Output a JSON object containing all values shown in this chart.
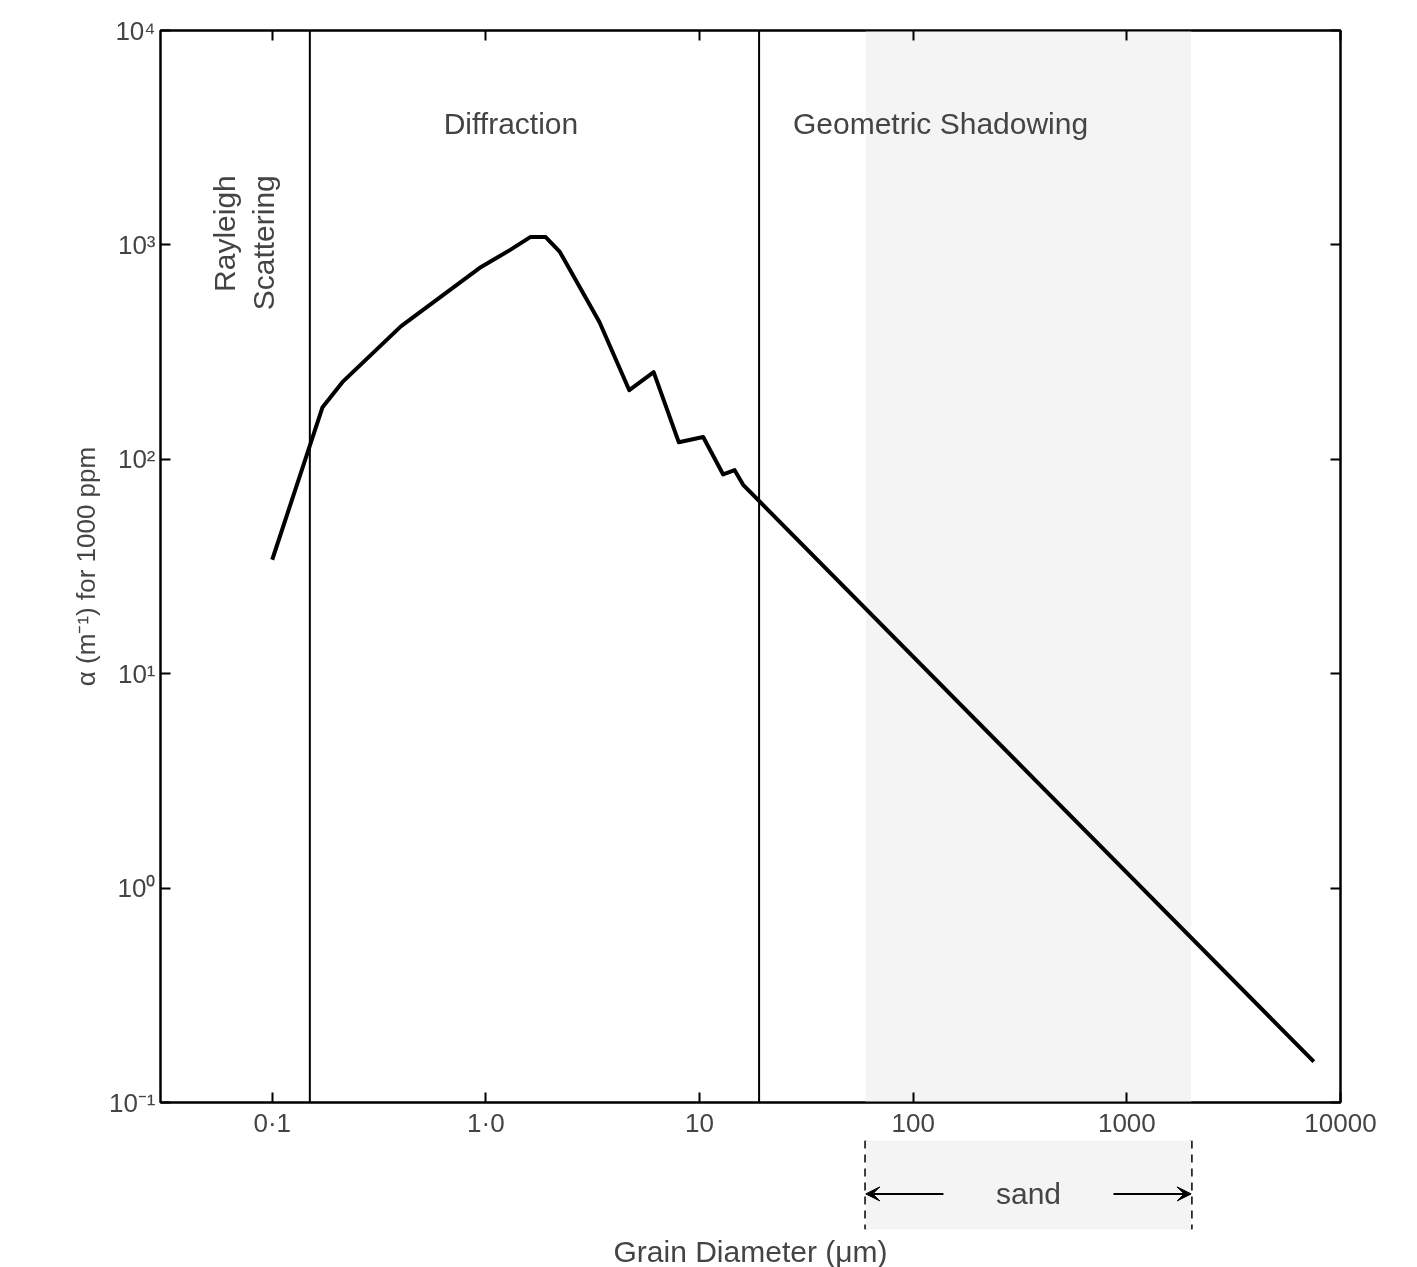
{
  "chart_data": {
    "type": "line",
    "xlabel": "Grain Diameter (μm)",
    "ylabel": "α (m⁻¹) for 1000 ppm",
    "log": "xy",
    "grid": false,
    "marker": "none",
    "line_style": "solid",
    "xlim": [
      0.03,
      10000
    ],
    "ylim": [
      0.1,
      10000
    ],
    "xticks": [
      {
        "value": 0.1,
        "label": "0·1"
      },
      {
        "value": 1,
        "label": "1·0"
      },
      10,
      100,
      1000,
      10000
    ],
    "yticks": [
      {
        "value": 0.1,
        "label": "10⁻¹"
      },
      {
        "value": 1,
        "label": "10⁰"
      },
      {
        "value": 10,
        "label": "10¹"
      },
      {
        "value": 100,
        "label": "10²"
      },
      {
        "value": 1000,
        "label": "10³"
      },
      {
        "value": 10000,
        "label": "10⁴"
      }
    ],
    "series": [
      {
        "color": "#000000",
        "x": [
          0.1,
          0.172,
          0.213,
          0.4,
          0.95,
          1.3,
          1.62,
          1.9,
          2.22,
          3.4,
          4.69,
          6.1,
          8.0,
          10.4,
          12.9,
          14.6,
          16,
          7500
        ],
        "values": [
          34,
          175,
          229,
          417,
          789,
          948,
          1090,
          1090,
          927,
          437,
          210,
          255,
          120,
          127,
          85,
          89,
          76,
          0.155
        ]
      }
    ],
    "ref_lines": [
      {
        "axis": "x",
        "value": 0.15
      },
      {
        "axis": "x",
        "value": 19
      }
    ],
    "bands": [
      {
        "axis": "x",
        "from": 60,
        "to": 2000,
        "label": "sand",
        "color": "#f4f4f4"
      }
    ],
    "annotations": [
      "Rayleigh\nScattering",
      "Diffraction",
      "Geometric Shadowing"
    ]
  }
}
